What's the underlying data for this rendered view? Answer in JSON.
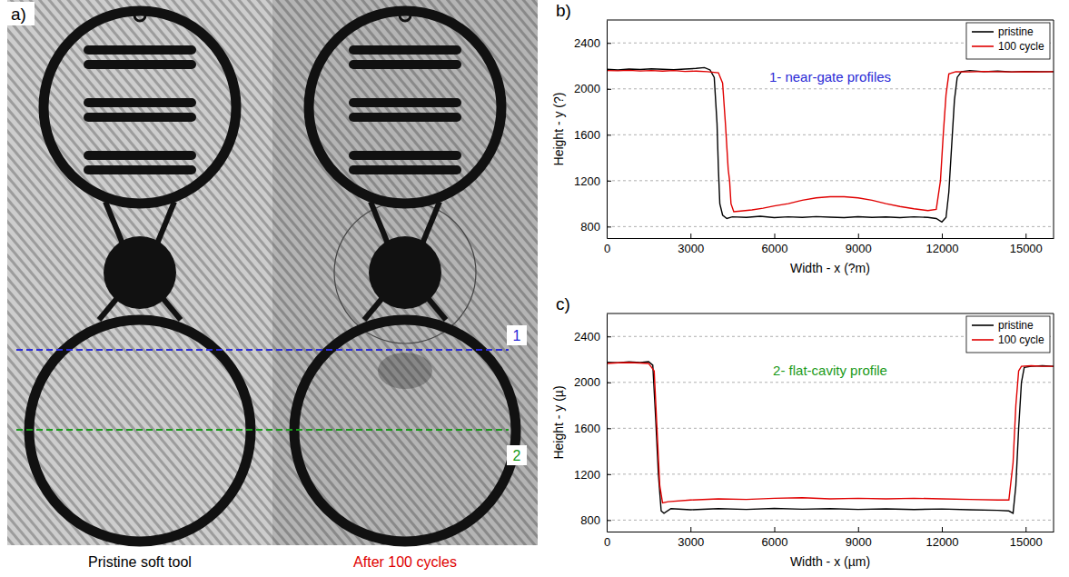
{
  "photo_panel": {
    "label": "a)",
    "captions": [
      "Pristine soft tool",
      "After 100 cycles"
    ],
    "profile_labels": [
      "1",
      "2"
    ]
  },
  "chart_data": [
    {
      "type": "line",
      "panel": "b)",
      "title": "1- near-gate profiles",
      "x_label": "Width - x (?m)",
      "y_label": "Height - y (?)",
      "xlim": [
        0,
        16000
      ],
      "ylim": [
        700,
        2600
      ],
      "xticks": [
        0,
        3000,
        6000,
        9000,
        12000,
        15000
      ],
      "yticks": [
        800,
        1200,
        1600,
        2000,
        2400
      ],
      "grid": true,
      "legend": "upper right",
      "series": [
        {
          "name": "pristine",
          "color": "#000000",
          "x": [
            0,
            400,
            800,
            1200,
            1600,
            2000,
            2400,
            2800,
            3200,
            3500,
            3700,
            3850,
            3950,
            4000,
            4050,
            4150,
            4300,
            4500,
            5000,
            5500,
            6000,
            6500,
            7000,
            7500,
            8000,
            8500,
            9000,
            9500,
            10000,
            10500,
            11000,
            11500,
            11800,
            12000,
            12150,
            12250,
            12350,
            12450,
            12550,
            12700,
            13000,
            13500,
            14000,
            14500,
            15000,
            15500,
            16000
          ],
          "values": [
            2170,
            2165,
            2172,
            2168,
            2175,
            2170,
            2166,
            2172,
            2178,
            2185,
            2165,
            2100,
            1700,
            1300,
            1000,
            900,
            870,
            885,
            880,
            890,
            878,
            885,
            880,
            887,
            882,
            878,
            886,
            880,
            884,
            878,
            885,
            880,
            870,
            840,
            880,
            1100,
            1500,
            1900,
            2100,
            2150,
            2160,
            2150,
            2155,
            2148,
            2152,
            2150,
            2150
          ]
        },
        {
          "name": "100 cycle",
          "color": "#e00000",
          "x": [
            0,
            400,
            800,
            1200,
            1600,
            2000,
            2400,
            2800,
            3200,
            3600,
            4000,
            4150,
            4250,
            4350,
            4400,
            4450,
            4550,
            4800,
            5200,
            5600,
            6000,
            6500,
            7000,
            7500,
            8000,
            8500,
            9000,
            9500,
            10000,
            10500,
            11000,
            11500,
            11800,
            11950,
            12050,
            12150,
            12250,
            12500,
            13000,
            13500,
            14000,
            14500,
            15000,
            15500,
            16000
          ],
          "values": [
            2160,
            2158,
            2162,
            2156,
            2160,
            2155,
            2160,
            2152,
            2155,
            2150,
            2140,
            2050,
            1700,
            1300,
            1200,
            1000,
            930,
            935,
            945,
            960,
            980,
            1000,
            1030,
            1050,
            1060,
            1060,
            1050,
            1030,
            1000,
            975,
            955,
            940,
            950,
            1200,
            1600,
            1950,
            2130,
            2150,
            2148,
            2152,
            2150,
            2148,
            2150,
            2148,
            2150
          ]
        }
      ]
    },
    {
      "type": "line",
      "panel": "c)",
      "title": "2- flat-cavity profile",
      "x_label": "Width - x (µm)",
      "y_label": "Height - y (µ)",
      "xlim": [
        0,
        16000
      ],
      "ylim": [
        700,
        2600
      ],
      "xticks": [
        0,
        3000,
        6000,
        9000,
        12000,
        15000
      ],
      "yticks": [
        800,
        1200,
        1600,
        2000,
        2400
      ],
      "grid": true,
      "legend": "upper right",
      "series": [
        {
          "name": "pristine",
          "color": "#000000",
          "x": [
            0,
            400,
            800,
            1200,
            1500,
            1650,
            1750,
            1850,
            1950,
            2050,
            2300,
            3000,
            4000,
            5000,
            6000,
            7000,
            8000,
            9000,
            10000,
            11000,
            12000,
            13000,
            14000,
            14400,
            14550,
            14650,
            14750,
            14850,
            14950,
            15200,
            15600,
            16000
          ],
          "values": [
            2175,
            2170,
            2178,
            2172,
            2180,
            2150,
            1700,
            1200,
            880,
            860,
            900,
            890,
            900,
            893,
            902,
            895,
            900,
            893,
            898,
            892,
            897,
            890,
            885,
            880,
            860,
            1100,
            1600,
            2000,
            2130,
            2140,
            2145,
            2140
          ]
        },
        {
          "name": "100 cycle",
          "color": "#e00000",
          "x": [
            0,
            400,
            800,
            1200,
            1500,
            1700,
            1800,
            1900,
            2000,
            2200,
            3000,
            4000,
            5000,
            6000,
            7000,
            8000,
            9000,
            10000,
            11000,
            12000,
            13000,
            14000,
            14400,
            14550,
            14650,
            14750,
            14850,
            15200,
            15600,
            16000
          ],
          "values": [
            2165,
            2170,
            2172,
            2168,
            2165,
            2100,
            1600,
            1100,
            950,
            960,
            975,
            985,
            980,
            990,
            995,
            985,
            990,
            985,
            990,
            985,
            980,
            975,
            975,
            1300,
            1800,
            2100,
            2140,
            2145,
            2140,
            2140
          ]
        }
      ]
    }
  ]
}
